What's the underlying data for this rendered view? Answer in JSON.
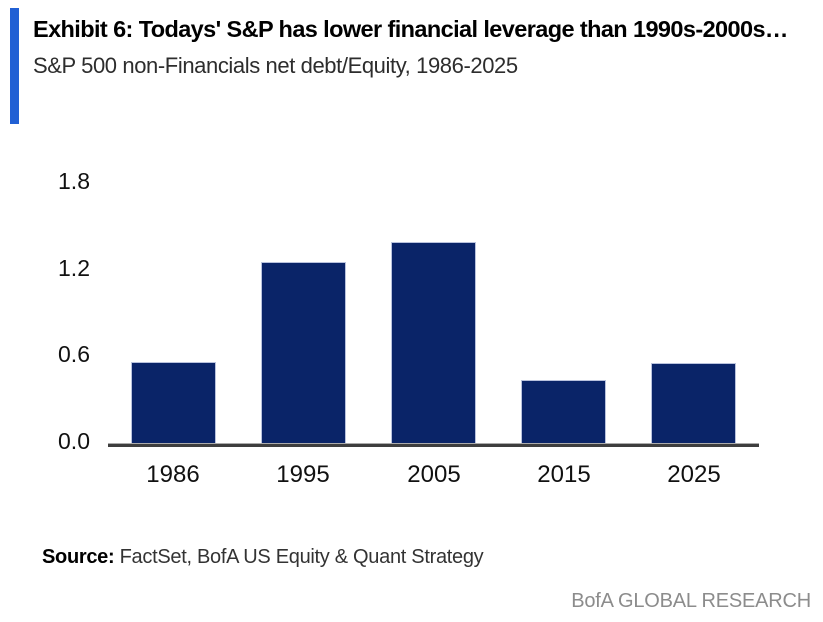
{
  "header": {
    "title": "Exhibit 6: Todays' S&P has lower financial leverage than 1990s-2000s…",
    "subtitle": "S&P 500 non-Financials net debt/Equity, 1986-2025"
  },
  "chart_data": {
    "type": "bar",
    "title": "S&P 500 non-Financials net debt/Equity, 1986-2025",
    "categories": [
      "1986",
      "1995",
      "2005",
      "2015",
      "2025"
    ],
    "values": [
      0.57,
      1.26,
      1.4,
      0.44,
      0.56
    ],
    "xlabel": "",
    "ylabel": "",
    "ylim": [
      0,
      1.8
    ],
    "yticks": [
      0.0,
      0.6,
      1.2,
      1.8
    ],
    "ytick_labels": [
      "0.0",
      "0.6",
      "1.2",
      "1.8"
    ],
    "grid": false,
    "legend": false,
    "bar_color": "#0a2468"
  },
  "source": {
    "label": "Source:",
    "text": " FactSet, BofA US Equity & Quant Strategy"
  },
  "footer": {
    "brand": "BofA GLOBAL RESEARCH"
  },
  "colors": {
    "accent_bar": "#2160d4",
    "bar_fill": "#0a2468",
    "bar_edge": "#b9c2dd",
    "axis_dark": "#3e3e3e",
    "axis_light": "#ababab",
    "brand_gray": "#8c8c8c"
  }
}
